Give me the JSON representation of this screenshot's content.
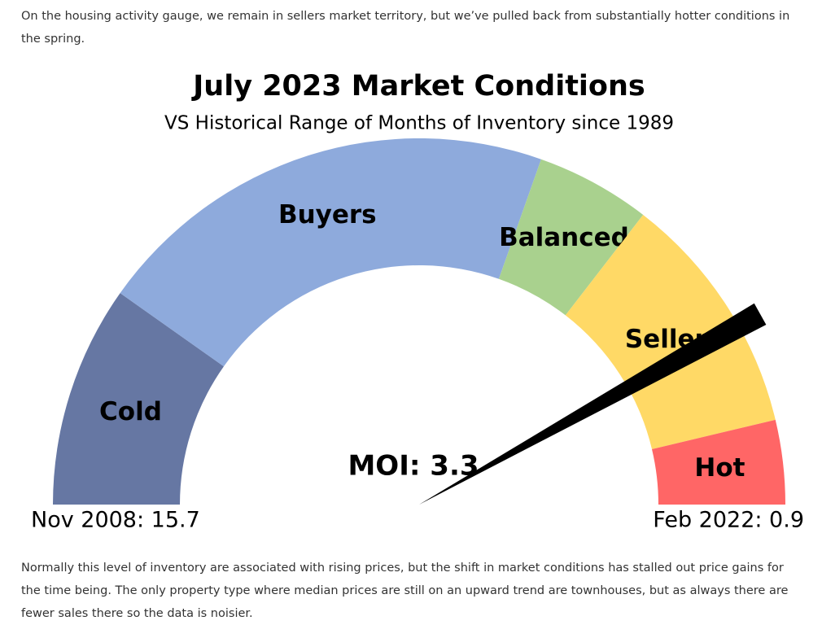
{
  "intro": "On the housing activity gauge, we remain in sellers market territory, but we’ve pulled back from substantially hotter conditions in the spring.",
  "chart_data": {
    "type": "gauge",
    "title": "July 2023 Market Conditions",
    "subtitle": "VS Historical Range of Months of Inventory since 1989",
    "left": {
      "value": 15.7,
      "label": "Nov 2008: 15.7"
    },
    "right": {
      "value": 0.9,
      "label": "Feb 2022: 0.9"
    },
    "categories": [
      "Cold",
      "Buyers",
      "Balanced",
      "Sellers",
      "Hot"
    ],
    "colors": [
      "#6677a3",
      "#8eaadc",
      "#a9d18e",
      "#ffd966",
      "#ff6666"
    ],
    "thresholds": [
      12.8,
      6.7,
      5.2,
      2.0
    ],
    "needle": {
      "value": 3.3,
      "label": "MOI: 3.3"
    }
  },
  "body": "Normally this level of inventory are associated with rising prices, but the shift in market conditions has stalled out price gains for the time being.   The only property type where median prices are still on an upward trend are townhouses, but as always there are fewer sales there so the data is noisier."
}
